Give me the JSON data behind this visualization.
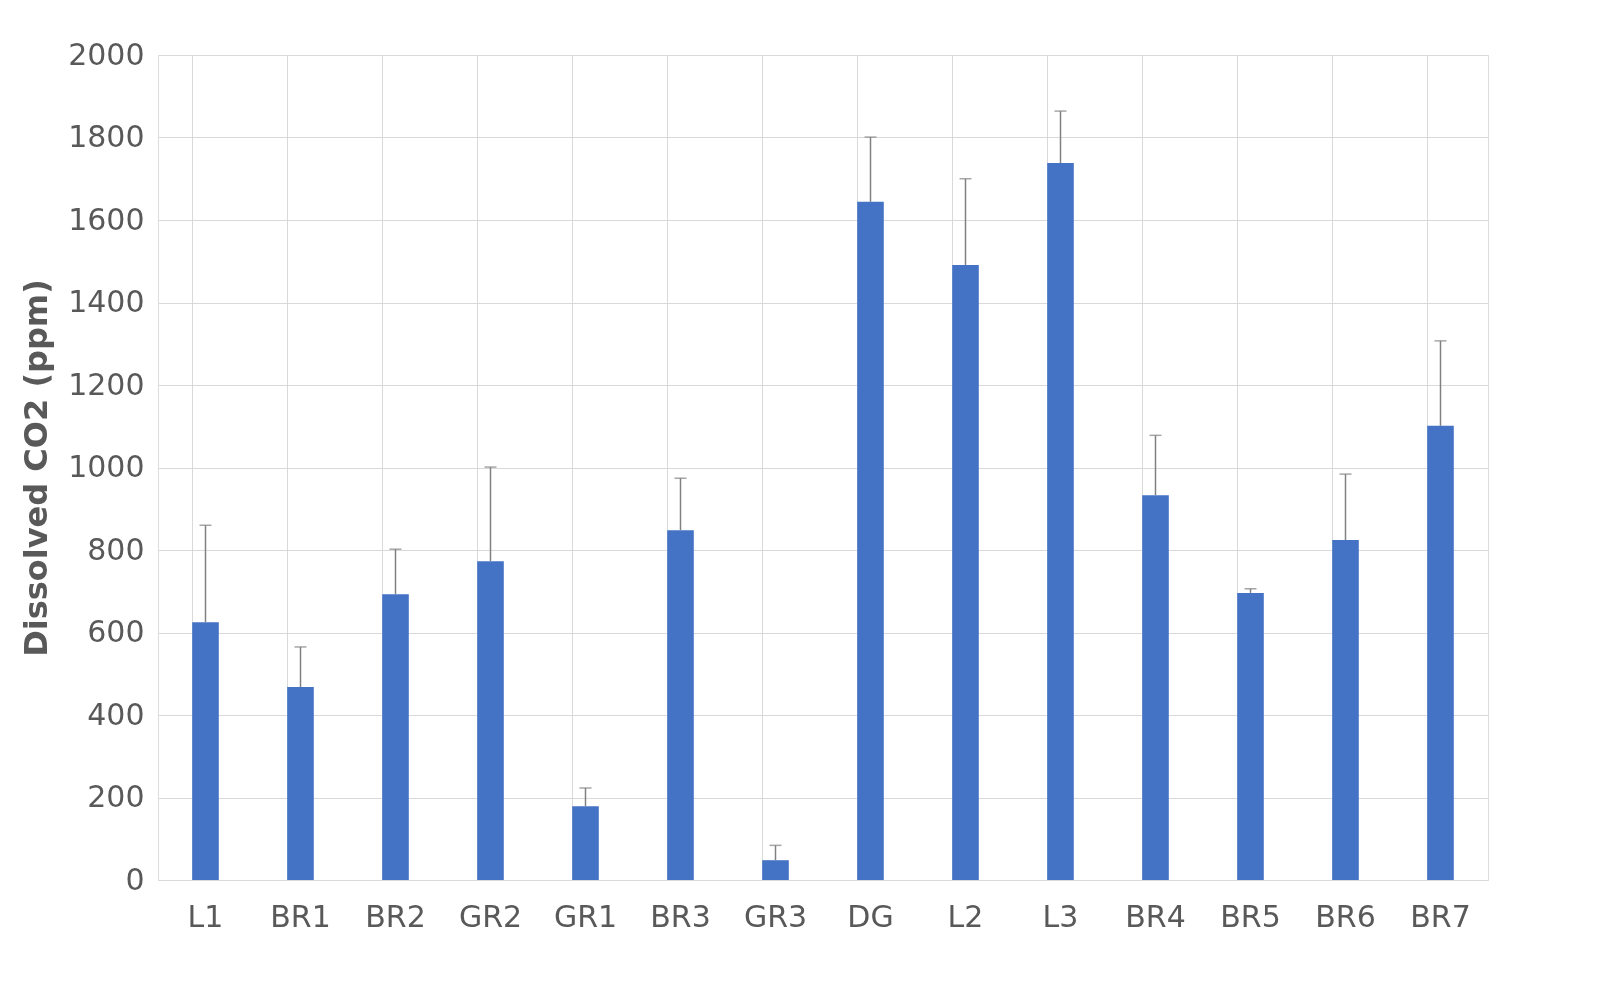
{
  "chart_data": {
    "type": "bar",
    "ylabel": "Dissolved CO2 (ppm)",
    "categories": [
      "L1",
      "BR1",
      "BR2",
      "GR2",
      "GR1",
      "BR3",
      "GR3",
      "DG",
      "L2",
      "L3",
      "BR4",
      "BR5",
      "BR6",
      "BR7"
    ],
    "values": [
      625,
      468,
      693,
      773,
      179,
      848,
      48,
      1644,
      1491,
      1738,
      933,
      696,
      824,
      1101
    ],
    "errors": [
      [
        625,
        860
      ],
      [
        468,
        565
      ],
      [
        693,
        802
      ],
      [
        773,
        1001
      ],
      [
        179,
        223
      ],
      [
        848,
        974
      ],
      [
        48,
        84
      ],
      [
        1644,
        1801
      ],
      [
        1491,
        1700
      ],
      [
        1738,
        1864
      ],
      [
        933,
        1078
      ],
      [
        696,
        706
      ],
      [
        824,
        984
      ],
      [
        1101,
        1307
      ]
    ],
    "color": "#4472c4",
    "ylim": [
      0,
      2000
    ],
    "yticks": [
      0,
      200,
      400,
      600,
      800,
      1000,
      1200,
      1400,
      1600,
      1800,
      2000
    ],
    "grid": true
  }
}
